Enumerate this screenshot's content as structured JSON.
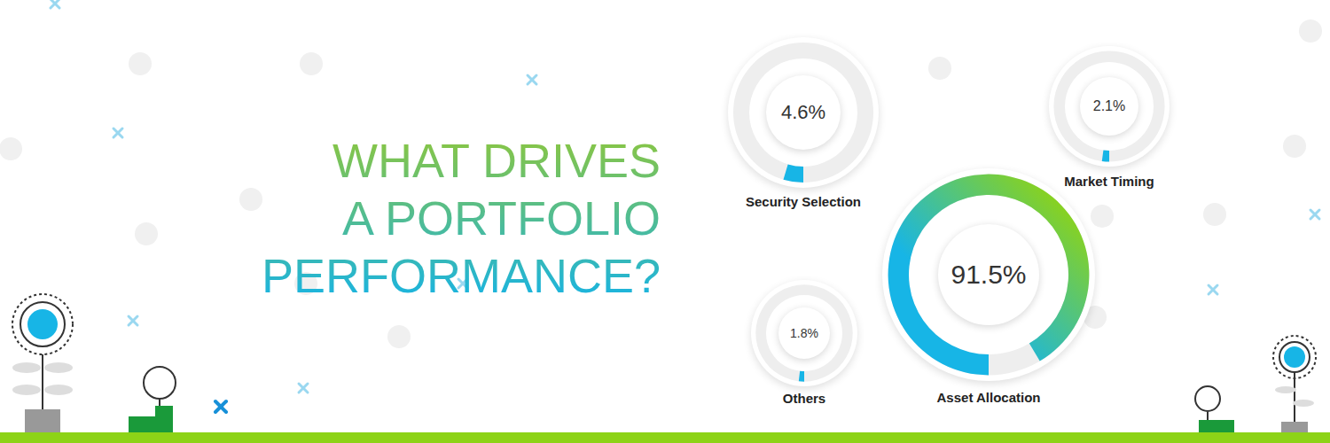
{
  "title": "WHAT DRIVES\nA PORTFOLIO\nPERFORMANCE?",
  "chart_data": [
    {
      "type": "donut",
      "title": "Security Selection",
      "values": [
        4.6
      ],
      "value_labels": [
        "4.6%"
      ],
      "ylim": [
        0,
        100
      ],
      "color": "#17b5e6",
      "data_labels": true,
      "tick_labels": false
    },
    {
      "type": "donut",
      "title": "Market Timing",
      "values": [
        2.1
      ],
      "value_labels": [
        "2.1%"
      ],
      "ylim": [
        0,
        100
      ],
      "color": "#17b5e6",
      "data_labels": true,
      "tick_labels": false
    },
    {
      "type": "donut",
      "title": "Others",
      "values": [
        1.8
      ],
      "value_labels": [
        "1.8%"
      ],
      "ylim": [
        0,
        100
      ],
      "color": "#17b5e6",
      "data_labels": true,
      "tick_labels": false
    },
    {
      "type": "donut",
      "title": "Asset Allocation",
      "values": [
        91.5
      ],
      "value_labels": [
        "91.5%"
      ],
      "ylim": [
        0,
        100
      ],
      "color": "#17b5e6",
      "data_labels": true,
      "tick_labels": false
    }
  ]
}
